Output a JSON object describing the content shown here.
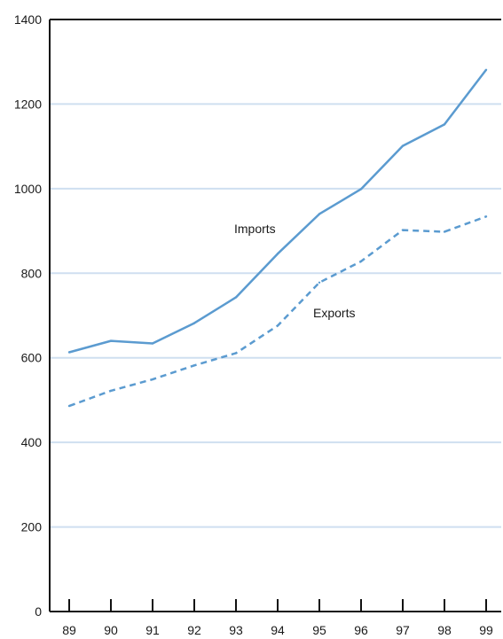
{
  "chart_data": {
    "type": "line",
    "x": [
      "89",
      "90",
      "91",
      "92",
      "93",
      "94",
      "95",
      "96",
      "97",
      "98",
      "99"
    ],
    "series": [
      {
        "name": "Imports",
        "style": "solid",
        "values": [
          613,
          640,
          634,
          682,
          743,
          846,
          940,
          999,
          1101,
          1152,
          1281
        ]
      },
      {
        "name": "Exports",
        "style": "dashed",
        "values": [
          486,
          522,
          549,
          582,
          611,
          676,
          778,
          828,
          902,
          898,
          934
        ]
      }
    ],
    "yticks": [
      0,
      200,
      400,
      600,
      800,
      1000,
      1200,
      1400
    ],
    "ylim": [
      0,
      1400
    ],
    "grid": true,
    "colors": {
      "line": "#5b9bd0",
      "grid": "#cfdff0",
      "axis": "#111111"
    },
    "title": "",
    "xlabel": "",
    "ylabel": ""
  }
}
